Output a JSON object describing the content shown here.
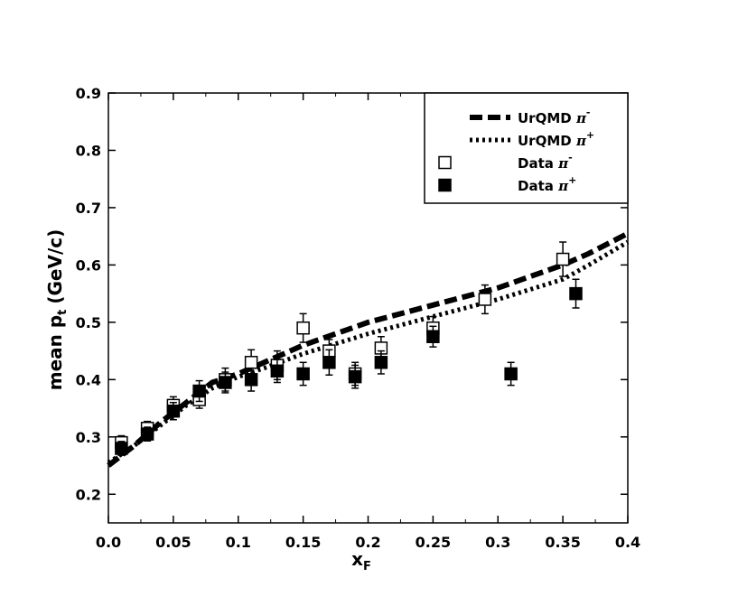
{
  "chart_data": {
    "type": "scatter",
    "xlabel": "x",
    "xlabel_sub": "F",
    "ylabel": "mean p",
    "ylabel_sub": "t",
    "ylabel_unit": "(GeV/c)",
    "xlim": [
      0.0,
      0.4
    ],
    "ylim": [
      0.15,
      0.9
    ],
    "xticks": [
      0.0,
      0.05,
      0.1,
      0.15,
      0.2,
      0.25,
      0.3,
      0.35,
      0.4
    ],
    "xtick_labels": [
      "0.0",
      "0.05",
      "0.1",
      "0.15",
      "0.2",
      "0.25",
      "0.3",
      "0.35",
      "0.4"
    ],
    "yticks": [
      0.2,
      0.3,
      0.4,
      0.5,
      0.6,
      0.7,
      0.8,
      0.9
    ],
    "ytick_labels": [
      "0.2",
      "0.3",
      "0.4",
      "0.5",
      "0.6",
      "0.7",
      "0.8",
      "0.9"
    ],
    "grid": false,
    "legend_position": "top-right",
    "series": [
      {
        "name": "UrQMD",
        "sup": "-",
        "style": "dashed",
        "x": [
          0.0,
          0.02,
          0.04,
          0.06,
          0.08,
          0.1,
          0.12,
          0.15,
          0.2,
          0.25,
          0.3,
          0.35,
          0.37,
          0.4
        ],
        "y": [
          0.25,
          0.285,
          0.325,
          0.36,
          0.395,
          0.41,
          0.43,
          0.46,
          0.5,
          0.53,
          0.56,
          0.6,
          0.62,
          0.655
        ]
      },
      {
        "name": "UrQMD",
        "sup": "+",
        "style": "dotted",
        "x": [
          0.0,
          0.02,
          0.04,
          0.06,
          0.08,
          0.1,
          0.12,
          0.15,
          0.2,
          0.25,
          0.3,
          0.35,
          0.37,
          0.4
        ],
        "y": [
          0.255,
          0.285,
          0.32,
          0.355,
          0.385,
          0.405,
          0.42,
          0.445,
          0.48,
          0.51,
          0.54,
          0.575,
          0.6,
          0.64
        ]
      },
      {
        "name": "Data",
        "sup": "-",
        "style": "open-square",
        "x": [
          0.01,
          0.03,
          0.05,
          0.07,
          0.09,
          0.11,
          0.13,
          0.15,
          0.17,
          0.19,
          0.21,
          0.25,
          0.29,
          0.35
        ],
        "y": [
          0.29,
          0.315,
          0.355,
          0.365,
          0.4,
          0.43,
          0.425,
          0.49,
          0.45,
          0.41,
          0.455,
          0.49,
          0.54,
          0.61
        ],
        "err": [
          0.012,
          0.012,
          0.015,
          0.015,
          0.02,
          0.022,
          0.025,
          0.025,
          0.02,
          0.02,
          0.02,
          0.02,
          0.025,
          0.03
        ]
      },
      {
        "name": "Data",
        "sup": "+",
        "style": "filled-square",
        "x": [
          0.01,
          0.03,
          0.05,
          0.07,
          0.09,
          0.11,
          0.13,
          0.15,
          0.17,
          0.19,
          0.21,
          0.25,
          0.31,
          0.36
        ],
        "y": [
          0.28,
          0.305,
          0.345,
          0.38,
          0.395,
          0.4,
          0.415,
          0.41,
          0.43,
          0.405,
          0.43,
          0.475,
          0.41,
          0.55
        ],
        "err": [
          0.012,
          0.012,
          0.015,
          0.018,
          0.018,
          0.02,
          0.02,
          0.02,
          0.022,
          0.02,
          0.02,
          0.018,
          0.02,
          0.025
        ]
      }
    ],
    "legend": [
      {
        "label": "UrQMD",
        "sup": "-",
        "style": "dashed"
      },
      {
        "label": "UrQMD",
        "sup": "+",
        "style": "dotted"
      },
      {
        "label": "Data",
        "sup": "-",
        "style": "open-square"
      },
      {
        "label": "Data",
        "sup": "+",
        "style": "filled-square"
      }
    ],
    "colors": {
      "ink": "#000000",
      "background": "#ffffff"
    }
  }
}
